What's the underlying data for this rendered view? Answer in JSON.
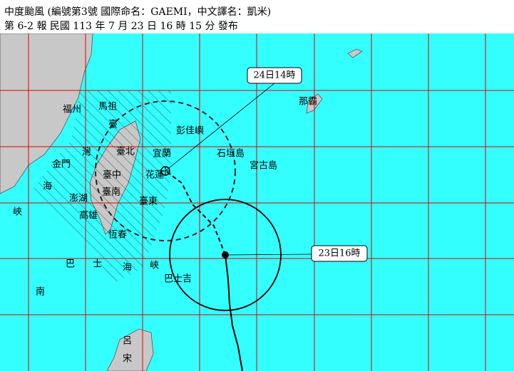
{
  "header": {
    "line1": "中度颱風 (編號第3號 國際命名：GAEMI，中文譯名：凱米)",
    "line2": "第 6-2 報 民國 113 年 7 月 23 日 16 時 15 分 發布"
  },
  "labels": [
    "福州",
    "馬祖",
    "臺",
    "灣",
    "海",
    "峽",
    "臺北",
    "宜蘭",
    "彭佳嶼",
    "金門",
    "臺中",
    "花蓮",
    "澎湖",
    "臺南",
    "臺東",
    "高雄",
    "恆春",
    "石垣島",
    "宮古島",
    "那霸",
    "巴",
    "士",
    "海",
    "峽",
    "巴士吉",
    "南",
    "呂",
    "宋"
  ],
  "callouts": [
    "24日14時",
    "23日16時"
  ]
}
